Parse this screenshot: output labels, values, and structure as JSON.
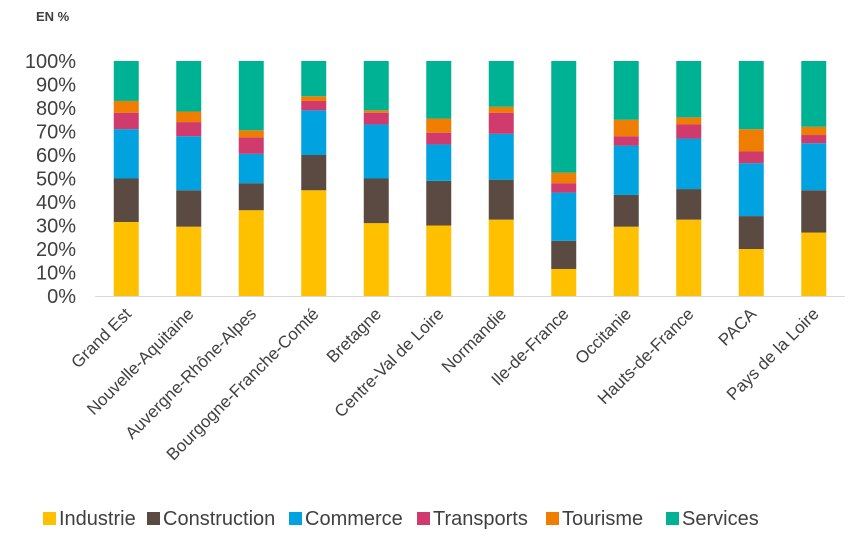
{
  "chart_data": {
    "type": "bar",
    "stacked": true,
    "unit_label": "EN %",
    "categories": [
      "Grand Est",
      "Nouvelle-Aquitaine",
      "Auvergne-Rhône-Alpes",
      "Bourgogne-Franche-Comté",
      "Bretagne",
      "Centre-Val de Loire",
      "Normandie",
      "Ile-de-France",
      "Occitanie",
      "Hauts-de-France",
      "PACA",
      "Pays de la Loire"
    ],
    "series": [
      {
        "name": "Industrie",
        "color": "#FFC000",
        "values": [
          31.5,
          29.5,
          36.5,
          45,
          31,
          30,
          32.5,
          11.5,
          29.5,
          32.5,
          20,
          27
        ]
      },
      {
        "name": "Construction",
        "color": "#5A4A42",
        "values": [
          18.5,
          15.5,
          11.5,
          15,
          19,
          19,
          17,
          12,
          13.5,
          13,
          14,
          18
        ]
      },
      {
        "name": "Commerce",
        "color": "#00A2E0",
        "values": [
          21,
          23,
          12.5,
          19,
          23,
          15.5,
          19.5,
          20.5,
          21,
          21.5,
          22.5,
          20
        ]
      },
      {
        "name": "Transports",
        "color": "#D03A6C",
        "values": [
          7,
          6,
          7,
          4,
          5,
          5,
          9,
          4,
          4,
          6,
          5,
          3.5
        ]
      },
      {
        "name": "Tourisme",
        "color": "#EF7D00",
        "values": [
          5,
          4.5,
          3,
          2,
          1,
          6,
          2.5,
          4.5,
          7,
          3,
          9.5,
          3.5
        ]
      },
      {
        "name": "Services",
        "color": "#00B294",
        "values": [
          17,
          21.5,
          29.5,
          15,
          21,
          24.5,
          19.5,
          47.5,
          25,
          24,
          29,
          28
        ]
      }
    ],
    "ylim": [
      0,
      100
    ],
    "yticks": [
      "0%",
      "10%",
      "20%",
      "30%",
      "40%",
      "50%",
      "60%",
      "70%",
      "80%",
      "90%",
      "100%"
    ],
    "grid": false,
    "legend_position": "bottom"
  }
}
